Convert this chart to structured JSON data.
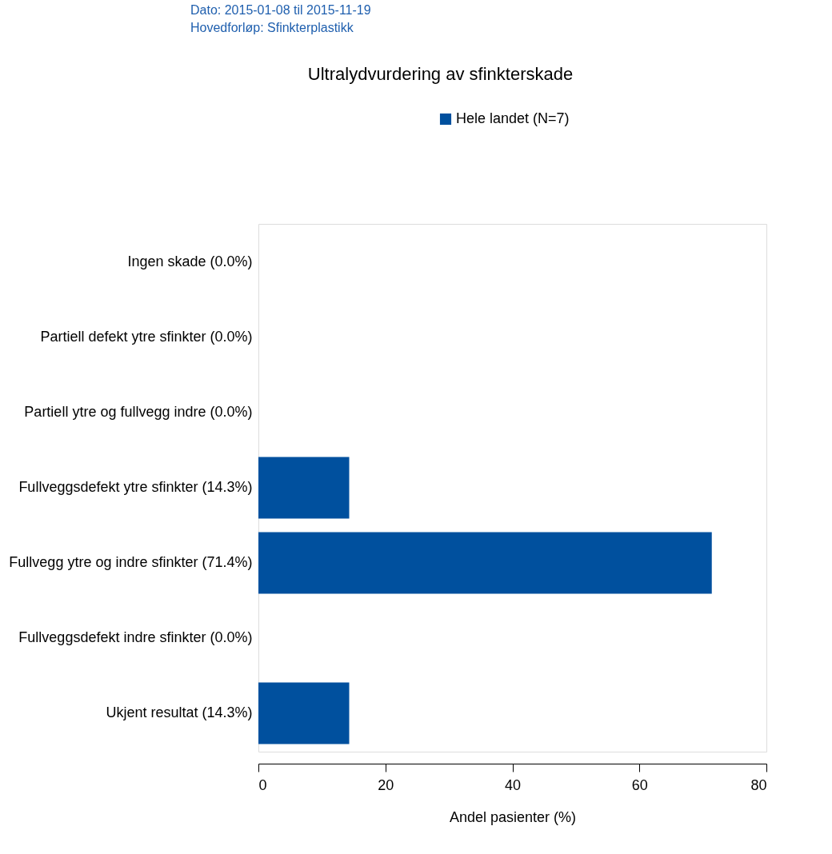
{
  "chart_data": {
    "type": "bar",
    "orientation": "horizontal",
    "title": "Ultralydvurdering av sfinkterskade",
    "xlabel": "Andel pasienter (%)",
    "annotations": [
      "Dato: 2015-01-08 til 2015-11-19",
      "Hovedforløp: Sfinkterplastikk"
    ],
    "categories": [
      "Ingen skade (0.0%)",
      "Partiell defekt ytre sfinkter (0.0%)",
      "Partiell ytre og fullvegg indre (0.0%)",
      "Fullveggsdefekt ytre sfinkter (14.3%)",
      "Fullvegg ytre og indre sfinkter (71.4%)",
      "Fullveggsdefekt indre sfinkter (0.0%)",
      "Ukjent resultat (14.3%)"
    ],
    "series": [
      {
        "name": "Hele landet (N=7)",
        "color": "#00509e",
        "values": [
          0,
          0,
          0,
          14.3,
          71.4,
          0,
          14.3
        ]
      }
    ],
    "xlim": [
      0,
      80
    ],
    "xticks": [
      0,
      20,
      40,
      60,
      80
    ],
    "grid": false,
    "legend": "top"
  }
}
